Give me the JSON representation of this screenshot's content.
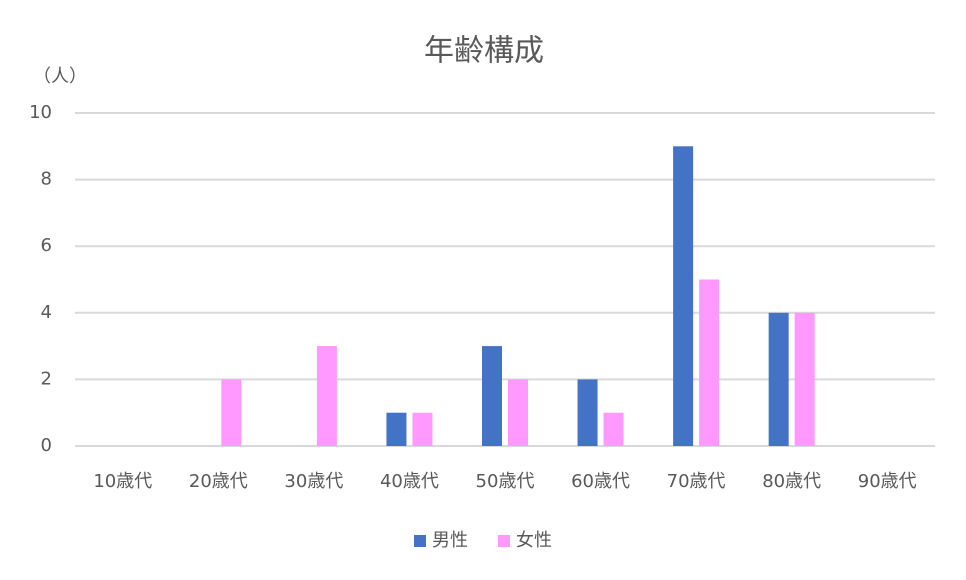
{
  "chart_data": {
    "type": "bar",
    "title": "年齢構成",
    "y_label": "（人）",
    "categories": [
      "10歳代",
      "20歳代",
      "30歳代",
      "40歳代",
      "50歳代",
      "60歳代",
      "70歳代",
      "80歳代",
      "90歳代"
    ],
    "series": [
      {
        "name": "男性",
        "color": "#4472c4",
        "values": [
          0,
          0,
          0,
          1,
          3,
          2,
          9,
          4,
          0
        ]
      },
      {
        "name": "女性",
        "color": "#ff99ff",
        "values": [
          0,
          2,
          3,
          1,
          2,
          1,
          5,
          4,
          0
        ]
      }
    ],
    "ylim": [
      0,
      10
    ],
    "yticks": [
      0,
      2,
      4,
      6,
      8,
      10
    ],
    "grid": true,
    "legend": "bottom"
  }
}
